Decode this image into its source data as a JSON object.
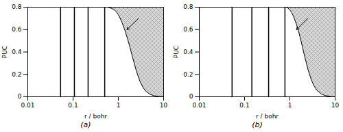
{
  "chart_data": [
    {
      "type": "line",
      "title": "(a)",
      "xlabel": "r / bohr",
      "ylabel": "PUC",
      "log": "x",
      "xlim": [
        0.01,
        10
      ],
      "ylim": [
        0,
        0.8
      ],
      "xticks": [
        0.01,
        0.1,
        1,
        10
      ],
      "yticks": [
        0,
        0.2,
        0.4,
        0.6,
        0.8
      ],
      "x": [
        0.01,
        0.05,
        0.1,
        0.15,
        0.2,
        0.3,
        0.4,
        0.5,
        0.55,
        0.6,
        0.7,
        0.8,
        0.9,
        1.0,
        1.1,
        1.2,
        1.4,
        1.6,
        1.8,
        2.0,
        2.5,
        3.0,
        3.5,
        4.0,
        5.0,
        6.0,
        8.0,
        10.0
      ],
      "values": [
        0.8,
        0.8,
        0.8,
        0.8,
        0.8,
        0.8,
        0.8,
        0.8,
        0.8,
        0.798,
        0.79,
        0.778,
        0.76,
        0.733,
        0.7,
        0.665,
        0.592,
        0.518,
        0.444,
        0.374,
        0.23,
        0.138,
        0.084,
        0.052,
        0.022,
        0.01,
        0.003,
        0.001
      ],
      "nodes": [
        0.053,
        0.107,
        0.215,
        0.5
      ],
      "arrow": {
        "x1": 2.8,
        "y1": 0.7,
        "x2": 1.55,
        "y2": 0.6
      },
      "color": "#000000",
      "node_color": "#000000",
      "fill_color": "#d8d8d8",
      "hatch_color": "#aaaaaa"
    },
    {
      "type": "line",
      "title": "(b)",
      "xlabel": "r / bohr",
      "ylabel": "PUC",
      "log": "x",
      "xlim": [
        0.01,
        10
      ],
      "ylim": [
        0,
        0.8
      ],
      "xticks": [
        0.01,
        0.1,
        1,
        10
      ],
      "yticks": [
        0,
        0.2,
        0.4,
        0.6,
        0.8
      ],
      "x": [
        0.01,
        0.05,
        0.1,
        0.2,
        0.3,
        0.5,
        0.7,
        0.78,
        0.85,
        0.9,
        1.0,
        1.1,
        1.2,
        1.4,
        1.6,
        1.8,
        2.0,
        2.5,
        3.0,
        3.5,
        4.0,
        5.0,
        6.0,
        8.0,
        10.0
      ],
      "values": [
        0.8,
        0.8,
        0.8,
        0.8,
        0.8,
        0.8,
        0.8,
        0.8,
        0.798,
        0.793,
        0.776,
        0.752,
        0.72,
        0.648,
        0.568,
        0.485,
        0.405,
        0.248,
        0.148,
        0.09,
        0.056,
        0.024,
        0.011,
        0.003,
        0.001
      ],
      "nodes": [
        0.053,
        0.145,
        0.34,
        0.78
      ],
      "arrow": {
        "x1": 2.5,
        "y1": 0.7,
        "x2": 1.4,
        "y2": 0.6
      },
      "color": "#000000",
      "node_color": "#000000",
      "fill_color": "#d8d8d8",
      "hatch_color": "#aaaaaa"
    }
  ]
}
